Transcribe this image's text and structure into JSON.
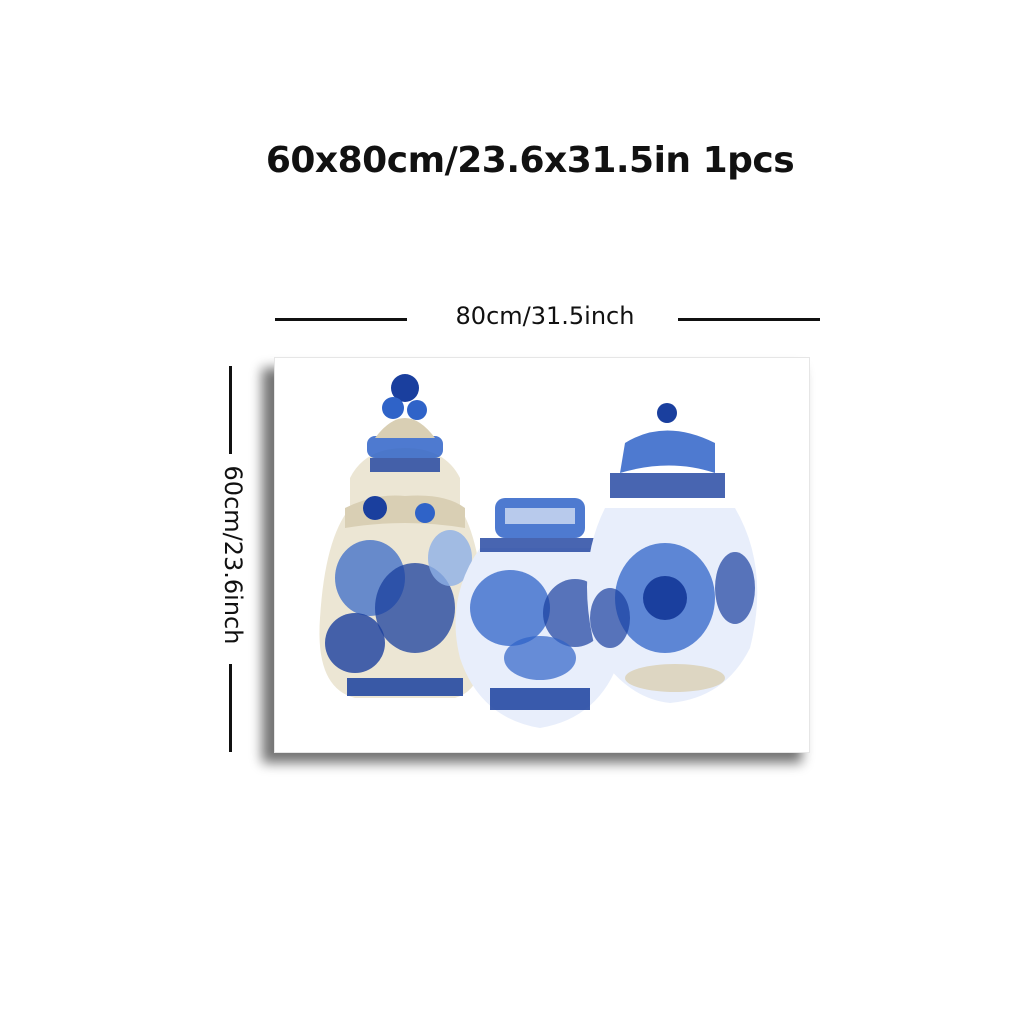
{
  "title": "60x80cm/23.6x31.5in 1pcs",
  "dimensions": {
    "width_label": "80cm/31.5inch",
    "height_label": "60cm/23.6inch"
  },
  "artwork": {
    "colors": {
      "blue_dark": "#1a3f9e",
      "blue_mid": "#2f63c8",
      "blue_light": "#8fb0e6",
      "beige": "#d9cfb4"
    }
  }
}
